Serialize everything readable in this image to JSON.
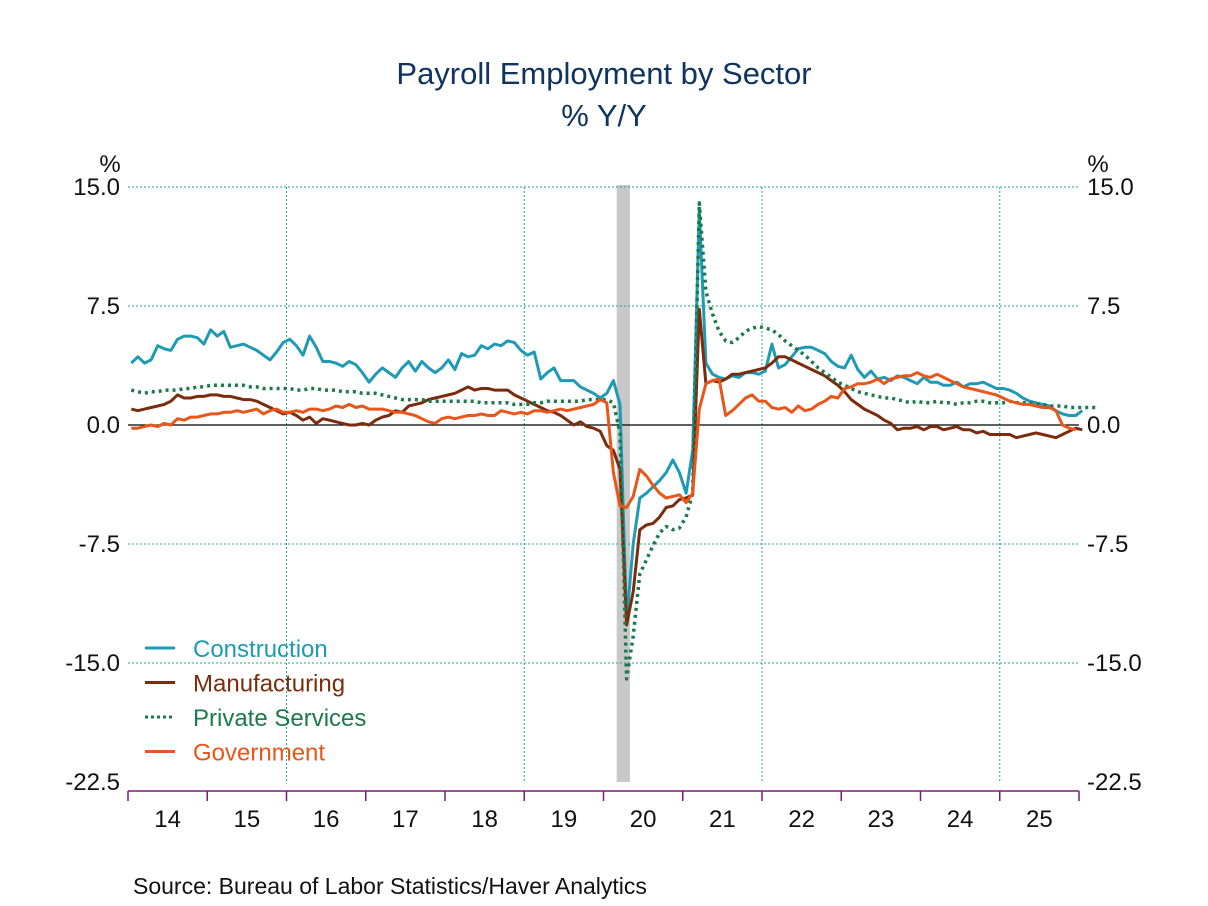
{
  "chart_data": {
    "type": "line",
    "title": "Payroll Employment by Sector",
    "subtitle": "% Y/Y",
    "ylabel_left": "%",
    "ylabel_right": "%",
    "xlabel": "",
    "ylim": [
      -22.5,
      15.0
    ],
    "yticks": [
      "15.0",
      "7.5",
      "0.0",
      "-7.5",
      "-15.0",
      "-22.5"
    ],
    "ytick_values": [
      15.0,
      7.5,
      0.0,
      -7.5,
      -15.0,
      -22.5
    ],
    "xticks": [
      "14",
      "15",
      "16",
      "17",
      "18",
      "19",
      "20",
      "21",
      "22",
      "23",
      "24",
      "25"
    ],
    "x_start": "2014-01",
    "x_end": "2025-12",
    "frequency": "monthly",
    "grid": true,
    "legend_position": "bottom-left",
    "recession_shading": {
      "start": "2020-03",
      "end": "2020-04"
    },
    "series": [
      {
        "name": "Construction",
        "color": "#1e9ab4",
        "style": "solid",
        "values": [
          3.9,
          4.3,
          3.9,
          4.1,
          5.0,
          4.8,
          4.7,
          5.4,
          5.6,
          5.6,
          5.5,
          5.1,
          6.0,
          5.6,
          5.9,
          4.9,
          5.0,
          5.1,
          4.9,
          4.7,
          4.4,
          4.1,
          4.6,
          5.2,
          5.4,
          5.0,
          4.4,
          5.6,
          4.9,
          4.0,
          4.0,
          3.9,
          3.7,
          4.0,
          3.8,
          3.3,
          2.7,
          3.2,
          3.6,
          3.3,
          3.0,
          3.6,
          4.0,
          3.4,
          4.0,
          3.6,
          3.3,
          3.6,
          4.1,
          3.5,
          4.5,
          4.3,
          4.4,
          5.0,
          4.8,
          5.1,
          5.0,
          5.3,
          5.2,
          4.7,
          4.4,
          4.6,
          2.9,
          3.3,
          3.6,
          2.8,
          2.8,
          2.8,
          2.4,
          2.2,
          2.0,
          1.7,
          2.0,
          2.8,
          1.3,
          -12.4,
          -7.5,
          -4.6,
          -4.3,
          -3.9,
          -3.5,
          -3.0,
          -2.2,
          -3.0,
          -4.3,
          -1.6,
          13.5,
          3.9,
          3.2,
          3.0,
          2.9,
          3.1,
          3.0,
          3.3,
          3.3,
          3.2,
          3.4,
          5.1,
          3.6,
          3.8,
          4.3,
          4.8,
          4.9,
          4.9,
          4.7,
          4.5,
          4.0,
          3.7,
          3.6,
          4.4,
          3.5,
          3.0,
          3.4,
          2.9,
          3.0,
          2.8,
          3.1,
          3.0,
          2.8,
          2.6,
          3.0,
          2.7,
          2.7,
          2.5,
          2.5,
          2.7,
          2.4,
          2.6,
          2.6,
          2.7,
          2.5,
          2.3,
          2.3,
          2.2,
          2.0,
          1.7,
          1.5,
          1.4,
          1.3,
          1.2,
          0.9,
          0.7,
          0.6,
          0.6,
          0.9
        ]
      },
      {
        "name": "Manufacturing",
        "color": "#7a2c0c",
        "style": "solid",
        "values": [
          1.0,
          0.9,
          1.0,
          1.1,
          1.2,
          1.3,
          1.5,
          1.9,
          1.7,
          1.7,
          1.8,
          1.8,
          1.9,
          1.9,
          1.8,
          1.8,
          1.7,
          1.6,
          1.6,
          1.5,
          1.3,
          1.1,
          0.9,
          0.7,
          0.8,
          0.6,
          0.3,
          0.5,
          0.1,
          0.4,
          0.3,
          0.2,
          0.1,
          0.0,
          0.0,
          0.1,
          0.0,
          0.3,
          0.5,
          0.6,
          0.9,
          0.8,
          1.2,
          1.3,
          1.4,
          1.6,
          1.7,
          1.8,
          1.9,
          2.0,
          2.2,
          2.4,
          2.2,
          2.3,
          2.3,
          2.2,
          2.2,
          2.2,
          1.9,
          1.7,
          1.5,
          1.3,
          1.1,
          0.9,
          0.8,
          0.6,
          0.3,
          0.0,
          0.2,
          -0.1,
          -0.2,
          -0.4,
          -1.3,
          -1.6,
          -2.8,
          -12.6,
          -10.5,
          -6.6,
          -6.3,
          -6.2,
          -5.8,
          -5.2,
          -5.1,
          -4.7,
          -4.6,
          -4.4,
          7.3,
          2.6,
          2.8,
          2.7,
          2.9,
          3.2,
          3.2,
          3.3,
          3.4,
          3.5,
          3.6,
          3.9,
          4.3,
          4.3,
          4.1,
          3.9,
          3.7,
          3.5,
          3.3,
          3.1,
          2.8,
          2.5,
          2.1,
          1.6,
          1.3,
          1.0,
          0.8,
          0.6,
          0.3,
          0.1,
          -0.3,
          -0.2,
          -0.2,
          -0.1,
          -0.3,
          -0.1,
          -0.1,
          -0.3,
          -0.2,
          -0.1,
          -0.3,
          -0.3,
          -0.5,
          -0.4,
          -0.6,
          -0.6,
          -0.6,
          -0.6,
          -0.8,
          -0.7,
          -0.6,
          -0.5,
          -0.6,
          -0.7,
          -0.8,
          -0.6,
          -0.4,
          -0.2,
          -0.3
        ]
      },
      {
        "name": "Private Services",
        "color": "#1b7a4c",
        "style": "dotted",
        "values": [
          2.2,
          2.1,
          2.0,
          2.1,
          2.1,
          2.2,
          2.2,
          2.2,
          2.3,
          2.3,
          2.4,
          2.4,
          2.5,
          2.5,
          2.5,
          2.5,
          2.5,
          2.5,
          2.4,
          2.4,
          2.3,
          2.3,
          2.3,
          2.3,
          2.3,
          2.2,
          2.2,
          2.3,
          2.3,
          2.2,
          2.2,
          2.2,
          2.1,
          2.1,
          2.1,
          2.0,
          2.0,
          2.0,
          1.9,
          1.8,
          1.7,
          1.6,
          1.6,
          1.6,
          1.6,
          1.5,
          1.5,
          1.5,
          1.5,
          1.5,
          1.5,
          1.5,
          1.5,
          1.4,
          1.4,
          1.4,
          1.4,
          1.4,
          1.3,
          1.3,
          1.3,
          1.4,
          1.4,
          1.5,
          1.5,
          1.5,
          1.5,
          1.5,
          1.5,
          1.6,
          1.6,
          1.6,
          1.6,
          1.4,
          -0.5,
          -16.0,
          -13.3,
          -9.4,
          -8.5,
          -7.6,
          -6.8,
          -6.4,
          -6.6,
          -6.5,
          -5.8,
          -4.3,
          14.0,
          8.4,
          7.0,
          5.9,
          5.3,
          5.2,
          5.5,
          5.9,
          6.1,
          6.2,
          6.1,
          6.0,
          5.7,
          5.3,
          5.0,
          4.7,
          4.4,
          4.0,
          3.6,
          3.3,
          3.0,
          2.7,
          2.5,
          2.3,
          2.1,
          2.0,
          1.9,
          1.8,
          1.7,
          1.7,
          1.6,
          1.5,
          1.4,
          1.5,
          1.4,
          1.4,
          1.5,
          1.4,
          1.4,
          1.3,
          1.4,
          1.4,
          1.5,
          1.5,
          1.4,
          1.4,
          1.4,
          1.5,
          1.4,
          1.4,
          1.4,
          1.3,
          1.3,
          1.2,
          1.2,
          1.2,
          1.1,
          1.1,
          1.1,
          1.1,
          1.1
        ]
      },
      {
        "name": "Government",
        "color": "#e8561a",
        "style": "solid",
        "values": [
          -0.2,
          -0.2,
          -0.1,
          0.0,
          -0.1,
          0.1,
          0.0,
          0.4,
          0.3,
          0.5,
          0.5,
          0.6,
          0.7,
          0.7,
          0.8,
          0.8,
          0.9,
          0.8,
          0.9,
          1.0,
          0.7,
          0.9,
          1.0,
          0.8,
          0.8,
          0.9,
          0.8,
          1.0,
          1.0,
          0.9,
          1.0,
          1.2,
          1.1,
          1.3,
          1.1,
          1.2,
          1.0,
          1.0,
          1.0,
          0.9,
          0.8,
          0.8,
          0.7,
          0.6,
          0.4,
          0.2,
          0.1,
          0.4,
          0.5,
          0.4,
          0.5,
          0.6,
          0.6,
          0.7,
          0.6,
          0.6,
          0.9,
          0.8,
          0.7,
          0.8,
          0.7,
          0.9,
          0.9,
          0.8,
          0.9,
          1.0,
          0.9,
          1.0,
          1.1,
          1.2,
          1.3,
          1.6,
          1.4,
          -3.0,
          -5.1,
          -5.2,
          -4.5,
          -2.8,
          -3.2,
          -3.8,
          -4.3,
          -4.6,
          -4.5,
          -4.4,
          -4.9,
          -4.3,
          1.0,
          2.6,
          2.8,
          2.9,
          0.6,
          0.9,
          1.3,
          1.7,
          1.9,
          1.5,
          1.5,
          1.1,
          1.0,
          1.1,
          0.8,
          1.2,
          0.9,
          1.0,
          1.3,
          1.5,
          1.8,
          1.7,
          2.3,
          2.4,
          2.6,
          2.6,
          2.7,
          2.9,
          2.6,
          2.9,
          3.0,
          3.1,
          3.1,
          3.3,
          3.1,
          3.0,
          3.2,
          3.0,
          2.8,
          2.6,
          2.4,
          2.3,
          2.2,
          2.1,
          2.0,
          1.9,
          1.7,
          1.5,
          1.4,
          1.3,
          1.3,
          1.2,
          1.1,
          1.1,
          0.9,
          0.0,
          -0.2,
          -0.3
        ]
      }
    ],
    "source": "Source:  Bureau of Labor Statistics/Haver Analytics"
  }
}
